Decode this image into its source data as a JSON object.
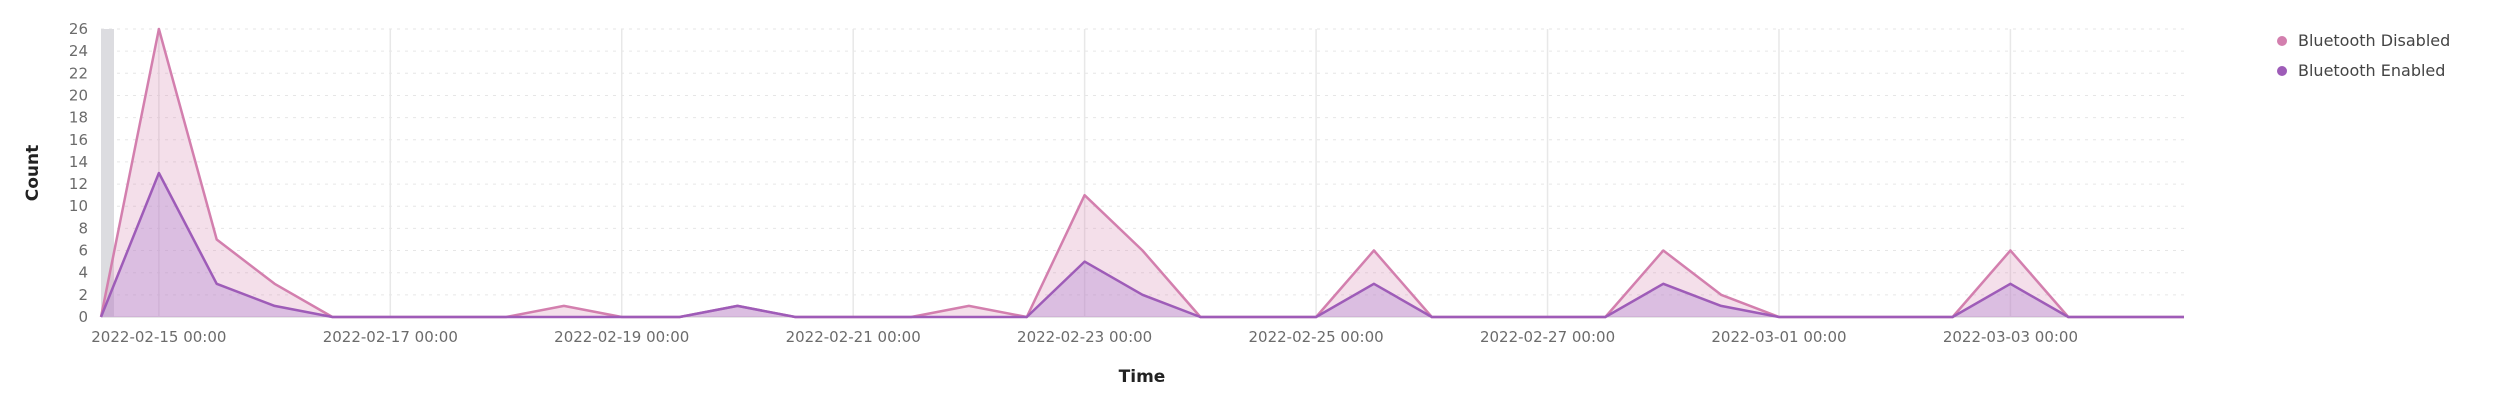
{
  "chart_data": {
    "type": "area",
    "xlabel": "Time",
    "ylabel": "Count",
    "ylim": [
      0,
      26
    ],
    "y_ticks": [
      0,
      2,
      4,
      6,
      8,
      10,
      12,
      14,
      16,
      18,
      20,
      22,
      24,
      26
    ],
    "x_tick_labels": [
      "2022-02-15 00:00",
      "2022-02-17 00:00",
      "2022-02-19 00:00",
      "2022-02-21 00:00",
      "2022-02-23 00:00",
      "2022-02-25 00:00",
      "2022-02-27 00:00",
      "2022-03-01 00:00",
      "2022-03-03 00:00"
    ],
    "xlim": [
      "2022-02-14 12:00",
      "2022-03-04 12:00"
    ],
    "x": [
      "2022-02-14 12:00",
      "2022-02-15 00:00",
      "2022-02-15 12:00",
      "2022-02-16 00:00",
      "2022-02-16 12:00",
      "2022-02-17 00:00",
      "2022-02-17 12:00",
      "2022-02-18 00:00",
      "2022-02-18 12:00",
      "2022-02-19 00:00",
      "2022-02-19 12:00",
      "2022-02-20 00:00",
      "2022-02-20 12:00",
      "2022-02-21 00:00",
      "2022-02-21 12:00",
      "2022-02-22 00:00",
      "2022-02-22 12:00",
      "2022-02-23 00:00",
      "2022-02-23 12:00",
      "2022-02-24 00:00",
      "2022-02-24 12:00",
      "2022-02-25 00:00",
      "2022-02-25 12:00",
      "2022-02-26 00:00",
      "2022-02-26 12:00",
      "2022-02-27 00:00",
      "2022-02-27 12:00",
      "2022-02-28 00:00",
      "2022-02-28 12:00",
      "2022-03-01 00:00",
      "2022-03-01 12:00",
      "2022-03-02 00:00",
      "2022-03-02 12:00",
      "2022-03-03 00:00",
      "2022-03-03 12:00",
      "2022-03-04 00:00",
      "2022-03-04 12:00"
    ],
    "series": [
      {
        "name": "Bluetooth Disabled",
        "color": "#d37fae",
        "values": [
          0,
          26,
          7,
          3,
          0,
          0,
          0,
          0,
          1,
          0,
          0,
          1,
          0,
          0,
          0,
          1,
          0,
          11,
          6,
          0,
          0,
          0,
          6,
          0,
          0,
          0,
          0,
          6,
          2,
          0,
          0,
          0,
          0,
          6,
          0,
          0,
          0
        ]
      },
      {
        "name": "Bluetooth Enabled",
        "color": "#9e5cb8",
        "values": [
          0,
          13,
          3,
          1,
          0,
          0,
          0,
          0,
          0,
          0,
          0,
          1,
          0,
          0,
          0,
          0,
          0,
          5,
          2,
          0,
          0,
          0,
          3,
          0,
          0,
          0,
          0,
          3,
          1,
          0,
          0,
          0,
          0,
          3,
          0,
          0,
          0
        ]
      }
    ],
    "grid": true,
    "legend_position": "top-right"
  }
}
